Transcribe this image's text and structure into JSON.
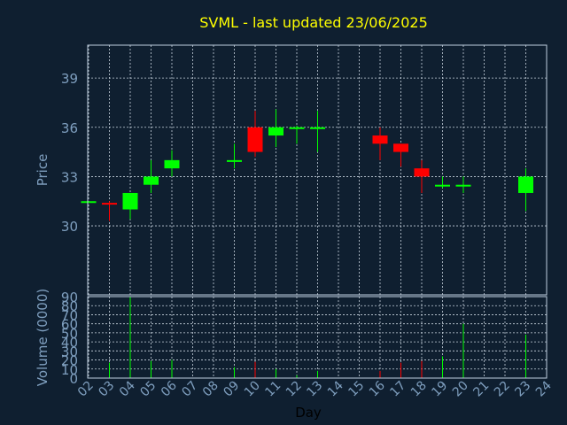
{
  "chart_data": {
    "type": "candlestick",
    "title": "SVML - last updated 23/06/2025",
    "xlabel": "Day",
    "x_ticks": [
      "02",
      "03",
      "04",
      "05",
      "06",
      "07",
      "08",
      "09",
      "10",
      "11",
      "12",
      "13",
      "14",
      "15",
      "16",
      "17",
      "18",
      "19",
      "20",
      "21",
      "22",
      "23",
      "24"
    ],
    "price": {
      "ylabel": "Price",
      "ylim": [
        25.8,
        41
      ],
      "yticks": [
        30,
        33,
        36,
        39
      ],
      "candles": [
        {
          "day": "02",
          "open": 31.5,
          "high": 31.5,
          "low": 31.5,
          "close": 31.5
        },
        {
          "day": "03",
          "open": 31.4,
          "high": 31.5,
          "low": 30.3,
          "close": 31.3
        },
        {
          "day": "04",
          "open": 31.0,
          "high": 32.0,
          "low": 30.4,
          "close": 32.0
        },
        {
          "day": "05",
          "open": 32.5,
          "high": 34.0,
          "low": 32.0,
          "close": 33.0
        },
        {
          "day": "06",
          "open": 33.5,
          "high": 34.6,
          "low": 33.0,
          "close": 34.0
        },
        {
          "day": "09",
          "open": 34.0,
          "high": 35.0,
          "low": 33.5,
          "close": 34.0
        },
        {
          "day": "10",
          "open": 36.0,
          "high": 37.0,
          "low": 34.2,
          "close": 34.5
        },
        {
          "day": "11",
          "open": 35.5,
          "high": 37.1,
          "low": 34.8,
          "close": 36.0
        },
        {
          "day": "12",
          "open": 36.0,
          "high": 36.1,
          "low": 35.0,
          "close": 36.0
        },
        {
          "day": "13",
          "open": 36.0,
          "high": 37.0,
          "low": 34.5,
          "close": 36.0
        },
        {
          "day": "16",
          "open": 35.5,
          "high": 36.0,
          "low": 34.0,
          "close": 35.0
        },
        {
          "day": "17",
          "open": 35.0,
          "high": 35.0,
          "low": 33.6,
          "close": 34.5
        },
        {
          "day": "18",
          "open": 33.5,
          "high": 34.0,
          "low": 32.0,
          "close": 33.0
        },
        {
          "day": "19",
          "open": 32.5,
          "high": 33.0,
          "low": 32.3,
          "close": 32.5
        },
        {
          "day": "20",
          "open": 32.5,
          "high": 33.0,
          "low": 32.0,
          "close": 32.5
        },
        {
          "day": "23",
          "open": 32.0,
          "high": 33.5,
          "low": 30.9,
          "close": 33.0
        }
      ]
    },
    "volume": {
      "ylabel": "Volume (0000)",
      "ylim": [
        0,
        90
      ],
      "yticks": [
        0,
        10,
        20,
        30,
        40,
        50,
        60,
        70,
        80,
        90
      ],
      "bars": [
        {
          "day": "03",
          "value": 17,
          "color": "#00ff00"
        },
        {
          "day": "04",
          "value": 90,
          "color": "#00ff00"
        },
        {
          "day": "05",
          "value": 19,
          "color": "#00ff00"
        },
        {
          "day": "06",
          "value": 20,
          "color": "#00ff00"
        },
        {
          "day": "09",
          "value": 12,
          "color": "#00ff00"
        },
        {
          "day": "10",
          "value": 18,
          "color": "#ff0000"
        },
        {
          "day": "11",
          "value": 10,
          "color": "#00ff00"
        },
        {
          "day": "12",
          "value": 3,
          "color": "#00ff00"
        },
        {
          "day": "13",
          "value": 8,
          "color": "#00ff00"
        },
        {
          "day": "16",
          "value": 8,
          "color": "#ff0000"
        },
        {
          "day": "17",
          "value": 17,
          "color": "#ff0000"
        },
        {
          "day": "18",
          "value": 19,
          "color": "#ff0000"
        },
        {
          "day": "19",
          "value": 24,
          "color": "#00ff00"
        },
        {
          "day": "20",
          "value": 60,
          "color": "#00ff00"
        },
        {
          "day": "23",
          "value": 48,
          "color": "#00ff00"
        }
      ]
    },
    "colors": {
      "background": "#0f1f30",
      "up": "#00ff00",
      "down": "#ff0000",
      "title": "#ffff00",
      "axis_text": "#7f9fbf",
      "frame": "#bfcfdf",
      "grid": "#c8d3de"
    },
    "grid": true
  }
}
